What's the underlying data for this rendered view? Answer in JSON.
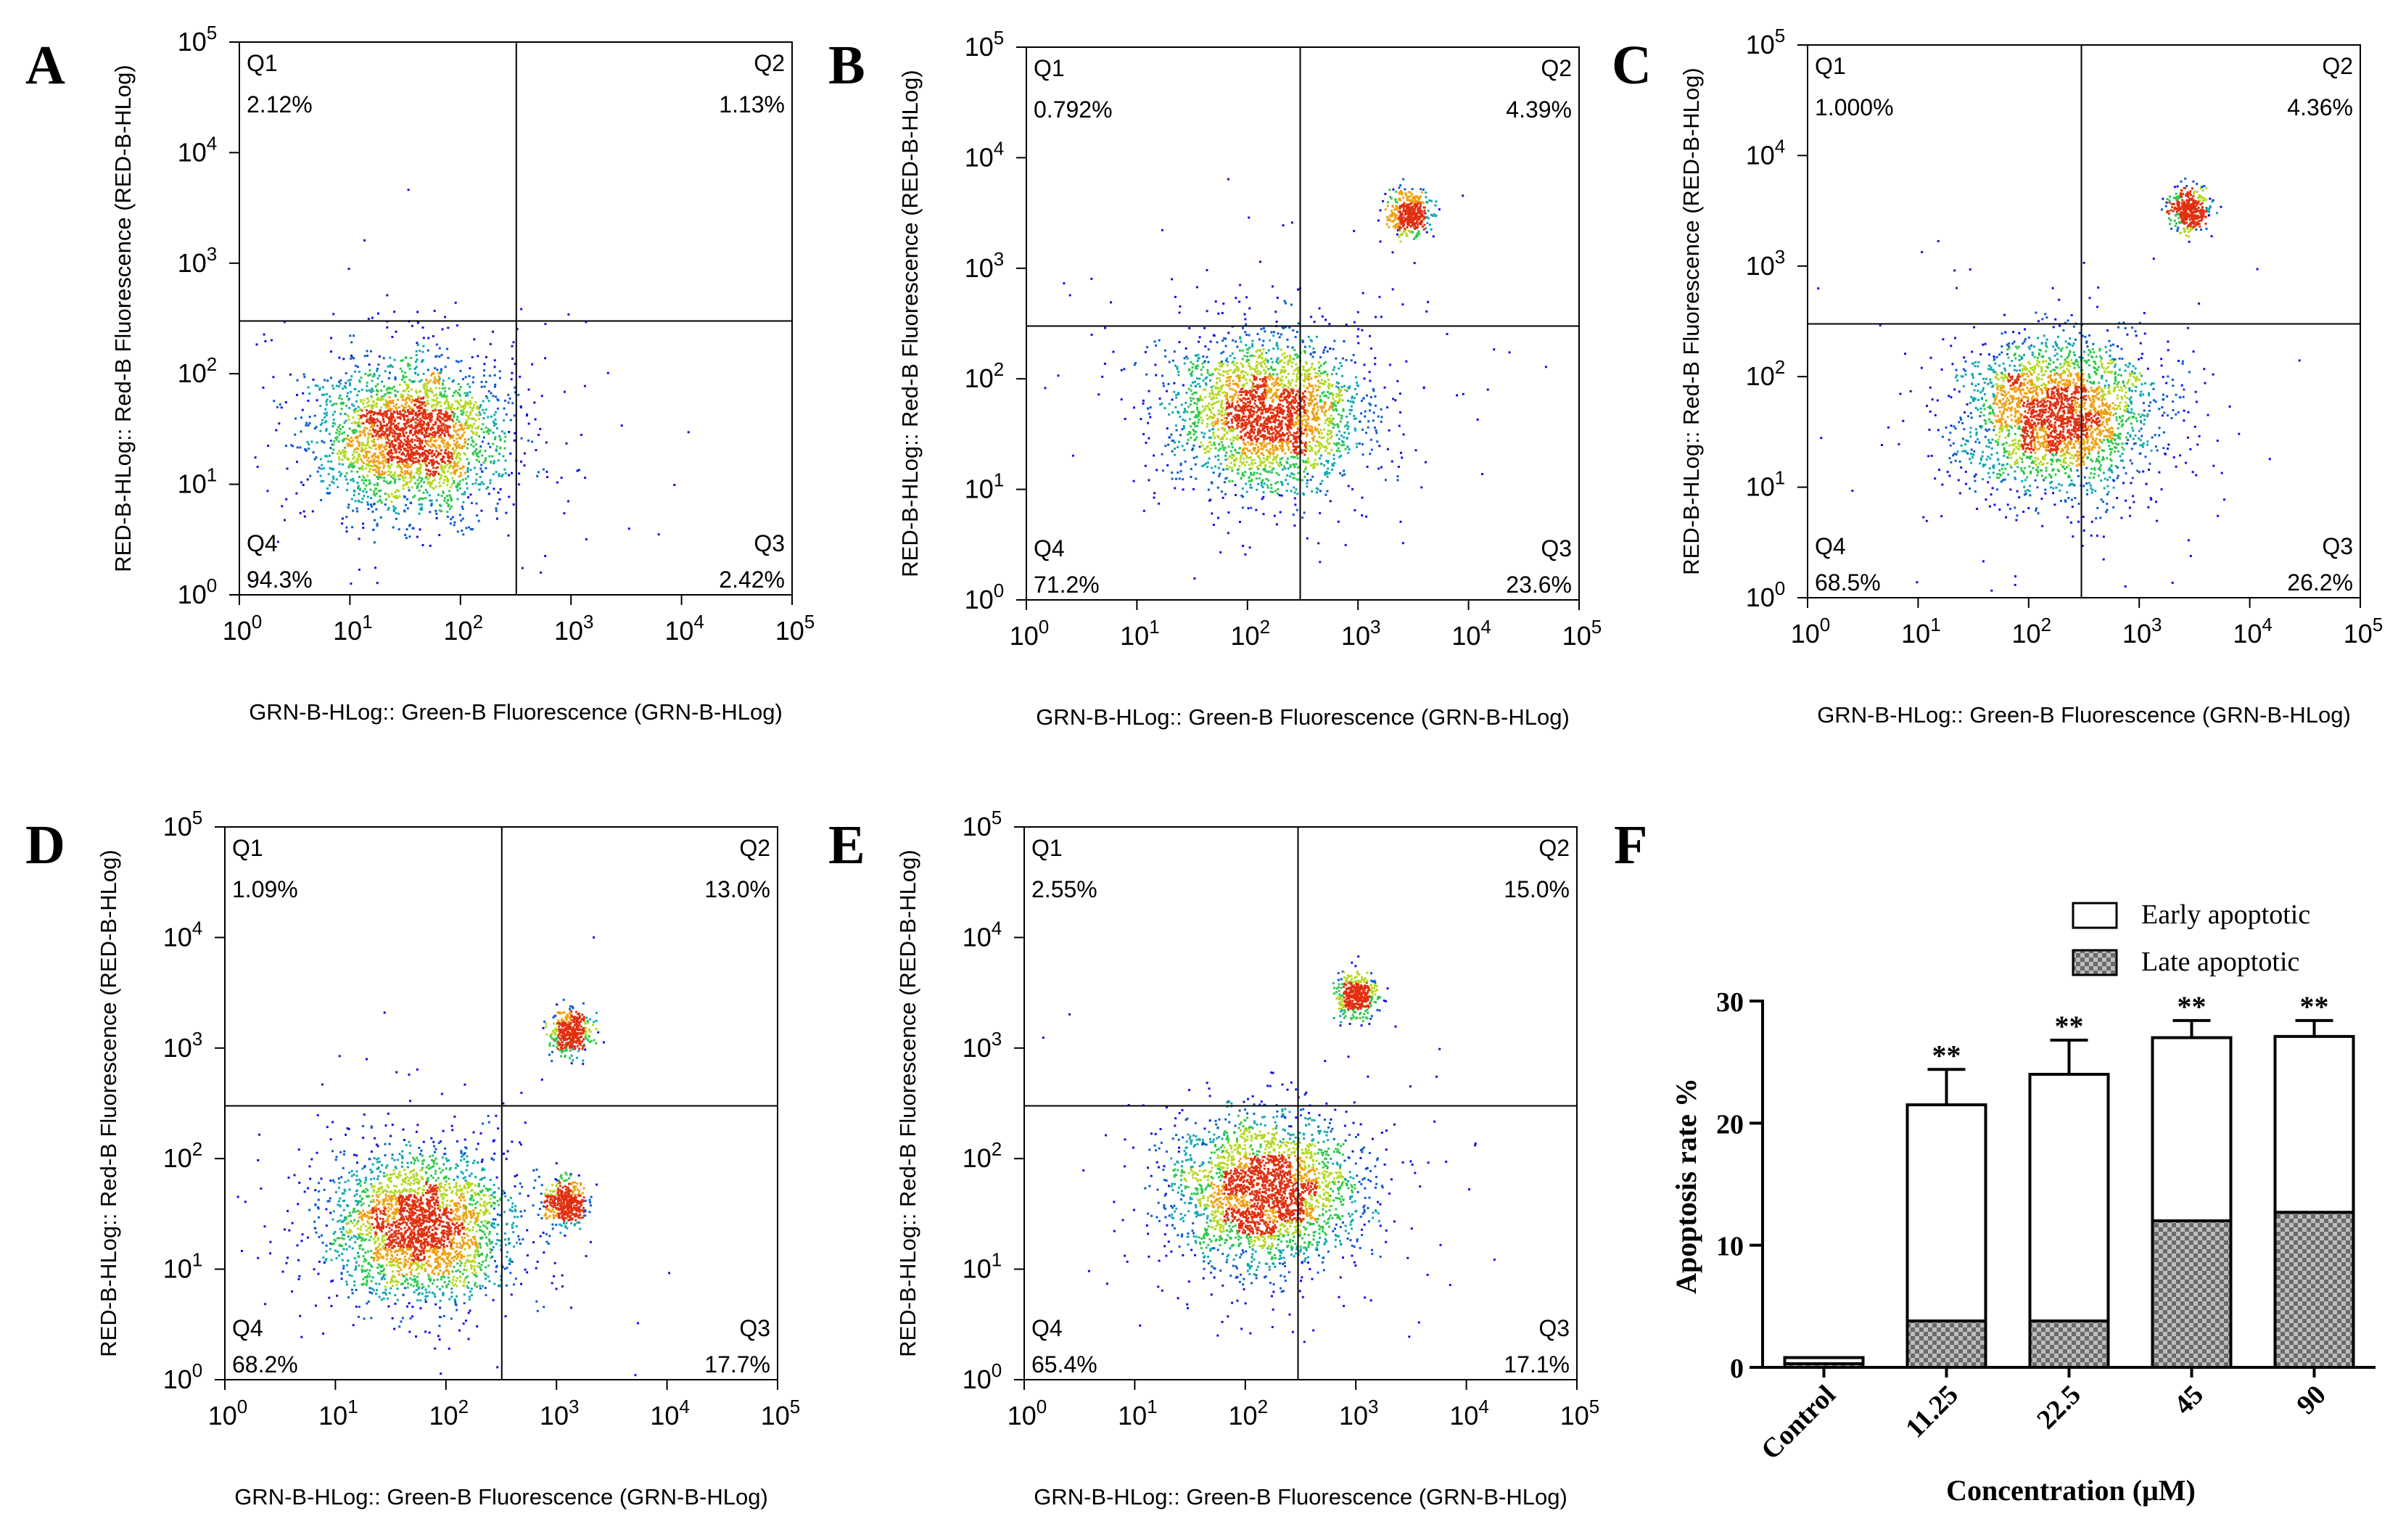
{
  "figure": {
    "axis_label_x": "GRN-B-HLog:: Green-B Fluorescence (GRN-B-HLog)",
    "axis_label_y": "RED-B-HLog:: Red-B Fluorescence (RED-B-HLog)",
    "quadrant_names": [
      "Q1",
      "Q2",
      "Q3",
      "Q4"
    ],
    "tick_bases": [
      "10",
      "10",
      "10",
      "10",
      "10",
      "10"
    ],
    "tick_exponents": [
      "0",
      "1",
      "2",
      "3",
      "4",
      "5"
    ]
  },
  "chart_data": [
    {
      "panel": "A",
      "type": "scatter",
      "axis_scale": "log",
      "xlim": [
        1,
        100000
      ],
      "ylim": [
        1,
        100000
      ],
      "gate": {
        "x": 320,
        "y": 300
      },
      "quadrants": {
        "Q1": "2.12%",
        "Q2": "1.13%",
        "Q3": "2.42%",
        "Q4": "94.3%"
      },
      "populations": [
        {
          "cx": 35,
          "cy": 28,
          "spread": "wide"
        }
      ]
    },
    {
      "panel": "B",
      "type": "scatter",
      "axis_scale": "log",
      "xlim": [
        1,
        100000
      ],
      "ylim": [
        1,
        100000
      ],
      "gate": {
        "x": 300,
        "y": 300
      },
      "quadrants": {
        "Q1": "0.792%",
        "Q2": "4.39%",
        "Q3": "23.6%",
        "Q4": "71.2%"
      },
      "populations": [
        {
          "cx": 150,
          "cy": 50,
          "spread": "wide"
        },
        {
          "cx": 2800,
          "cy": 3200,
          "spread": "tight"
        }
      ]
    },
    {
      "panel": "C",
      "type": "scatter",
      "axis_scale": "log",
      "xlim": [
        1,
        100000
      ],
      "ylim": [
        1,
        100000
      ],
      "gate": {
        "x": 300,
        "y": 300
      },
      "quadrants": {
        "Q1": "1.000%",
        "Q2": "4.36%",
        "Q3": "26.2%",
        "Q4": "68.5%"
      },
      "populations": [
        {
          "cx": 180,
          "cy": 45,
          "spread": "wide"
        },
        {
          "cx": 2800,
          "cy": 3300,
          "spread": "tight"
        }
      ]
    },
    {
      "panel": "D",
      "type": "scatter",
      "axis_scale": "log",
      "xlim": [
        1,
        100000
      ],
      "ylim": [
        1,
        100000
      ],
      "gate": {
        "x": 320,
        "y": 300
      },
      "quadrants": {
        "Q1": "1.09%",
        "Q2": "13.0%",
        "Q3": "17.7%",
        "Q4": "68.2%"
      },
      "populations": [
        {
          "cx": 60,
          "cy": 25,
          "spread": "wide"
        },
        {
          "cx": 1200,
          "cy": 40,
          "spread": "tight"
        },
        {
          "cx": 1300,
          "cy": 1400,
          "spread": "tight"
        }
      ]
    },
    {
      "panel": "E",
      "type": "scatter",
      "axis_scale": "log",
      "xlim": [
        1,
        100000
      ],
      "ylim": [
        1,
        100000
      ],
      "gate": {
        "x": 300,
        "y": 300
      },
      "quadrants": {
        "Q1": "2.55%",
        "Q2": "15.0%",
        "Q3": "17.1%",
        "Q4": "65.4%"
      },
      "populations": [
        {
          "cx": 150,
          "cy": 50,
          "spread": "wide"
        },
        {
          "cx": 1000,
          "cy": 3000,
          "spread": "tight"
        }
      ]
    },
    {
      "panel": "F",
      "type": "bar",
      "stacked": true,
      "categories": [
        "Control",
        "11.25",
        "22.5",
        "45",
        "90"
      ],
      "xlabel": "Concentration (μM)",
      "ylabel": "Apoptosis rate %",
      "ylim": [
        0,
        30
      ],
      "yticks": [
        "0",
        "10",
        "20",
        "30"
      ],
      "series": [
        {
          "name": "Late apoptotic",
          "values": [
            0.3,
            3.8,
            3.8,
            12.0,
            12.7
          ],
          "errors": [
            0.1,
            0.4,
            0.4,
            0.7,
            1.4
          ],
          "marks": [
            "",
            "*",
            "*",
            "**",
            "**"
          ]
        },
        {
          "name": "Early apoptotic",
          "values": [
            0.5,
            17.7,
            20.2,
            15.0,
            14.4
          ],
          "errors": [
            0.1,
            2.9,
            2.8,
            1.4,
            1.3
          ],
          "marks": [
            "",
            "**",
            "**",
            "**",
            "**"
          ]
        }
      ]
    }
  ]
}
